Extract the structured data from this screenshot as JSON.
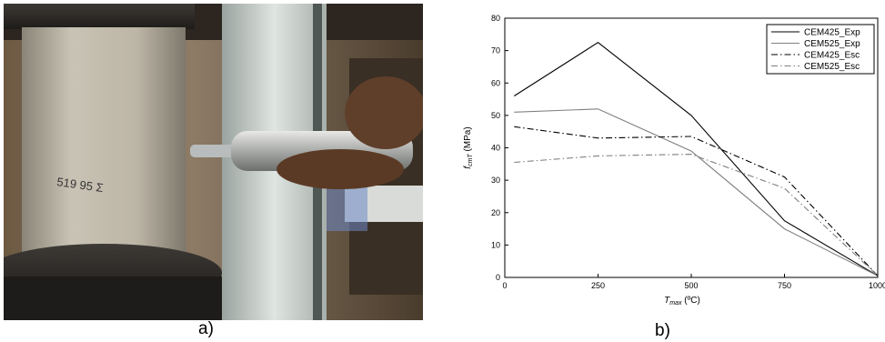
{
  "captions": {
    "left": "a)",
    "right": "b)"
  },
  "photo": {
    "handwritten_text": "519 95 Σ"
  },
  "chart_data": {
    "type": "line",
    "x": [
      25,
      250,
      500,
      750,
      1000
    ],
    "xlim": [
      0,
      1000
    ],
    "ylim": [
      0,
      80
    ],
    "xticks": [
      0,
      250,
      500,
      750,
      1000
    ],
    "yticks": [
      0,
      10,
      20,
      30,
      40,
      50,
      60,
      70,
      80
    ],
    "xlabel": {
      "symbol": "T",
      "sub": "max",
      "unit": "(ºC)"
    },
    "ylabel": {
      "symbol": "f",
      "sub": "cmT",
      "unit": "(MPa)"
    },
    "legend_position": "top-right",
    "grid": false,
    "series": [
      {
        "name": "CEM425_Exp",
        "values": [
          56,
          72.5,
          50,
          17.5,
          0.5
        ],
        "color": "#000000",
        "dash": "solid"
      },
      {
        "name": "CEM525_Exp",
        "values": [
          51,
          52,
          39,
          15,
          0.5
        ],
        "color": "#808080",
        "dash": "solid"
      },
      {
        "name": "CEM425_Esc",
        "values": [
          46.5,
          43,
          43.5,
          31,
          0.5
        ],
        "color": "#000000",
        "dash": "dashdot"
      },
      {
        "name": "CEM525_Esc",
        "values": [
          35.5,
          37.5,
          38,
          27.5,
          0.5
        ],
        "color": "#808080",
        "dash": "dashdot"
      }
    ]
  }
}
